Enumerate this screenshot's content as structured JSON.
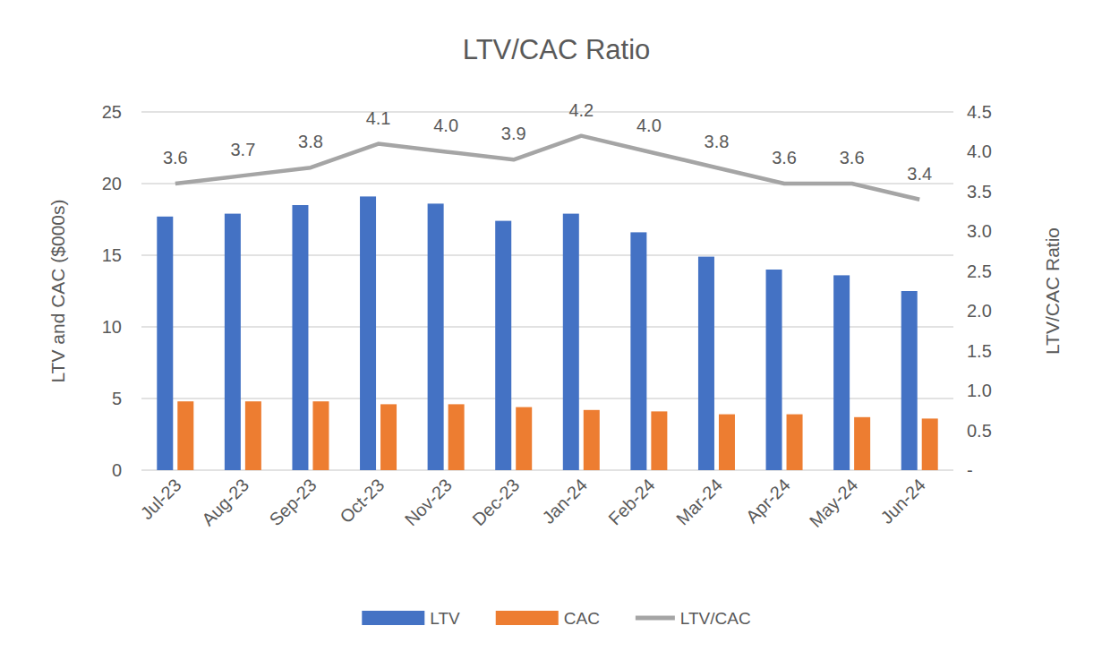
{
  "chart_data": {
    "type": "bar",
    "title": "LTV/CAC Ratio",
    "y_label": "LTV and CAC ($000s)",
    "y2_label": "LTV/CAC Ratio",
    "categories": [
      "Jul-23",
      "Aug-23",
      "Sep-23",
      "Oct-23",
      "Nov-23",
      "Dec-23",
      "Jan-24",
      "Feb-24",
      "Mar-24",
      "Apr-24",
      "May-24",
      "Jun-24"
    ],
    "series": [
      {
        "name": "LTV",
        "type": "bar",
        "color": "#4472c4",
        "values": [
          17.7,
          17.9,
          18.5,
          19.1,
          18.6,
          17.4,
          17.9,
          16.6,
          14.9,
          14.0,
          13.6,
          12.5
        ]
      },
      {
        "name": "CAC",
        "type": "bar",
        "color": "#ed7d31",
        "values": [
          4.8,
          4.8,
          4.8,
          4.6,
          4.6,
          4.4,
          4.2,
          4.1,
          3.9,
          3.9,
          3.7,
          3.6
        ]
      },
      {
        "name": "LTV/CAC",
        "type": "line",
        "axis": "y2",
        "color": "#a5a5a5",
        "data_labels": true,
        "values": [
          3.6,
          3.7,
          3.8,
          4.1,
          4.0,
          3.9,
          4.2,
          4.0,
          3.8,
          3.6,
          3.6,
          3.4
        ],
        "value_labels": [
          "3.6",
          "3.7",
          "3.8",
          "4.1",
          "4.0",
          "3.9",
          "4.2",
          "4.0",
          "3.8",
          "3.6",
          "3.6",
          "3.4"
        ]
      }
    ],
    "ylim": [
      0,
      25
    ],
    "yticks": [
      0,
      5,
      10,
      15,
      20,
      25
    ],
    "y2lim": [
      0,
      4.5
    ],
    "y2ticks": [
      {
        "value": 0,
        "label": "-"
      },
      0.5,
      {
        "value": 1,
        "label": "1.0"
      },
      1.5,
      {
        "value": 2,
        "label": "2.0"
      },
      2.5,
      {
        "value": 3,
        "label": "3.0"
      },
      3.5,
      {
        "value": 4,
        "label": "4.0"
      },
      4.5
    ],
    "grid": true,
    "legend": "bottom"
  }
}
